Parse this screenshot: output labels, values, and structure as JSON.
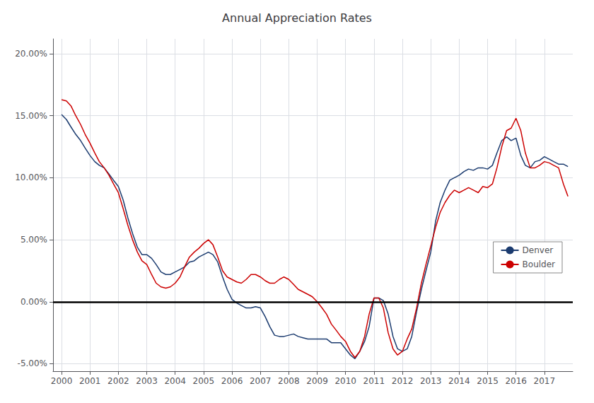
{
  "chart_data": {
    "type": "line",
    "title": "Annual Appreciation Rates",
    "x": [
      2000.0,
      2000.17,
      2000.33,
      2000.5,
      2000.67,
      2000.83,
      2001.0,
      2001.17,
      2001.33,
      2001.5,
      2001.67,
      2001.83,
      2002.0,
      2002.17,
      2002.33,
      2002.5,
      2002.67,
      2002.83,
      2003.0,
      2003.17,
      2003.33,
      2003.5,
      2003.67,
      2003.83,
      2004.0,
      2004.17,
      2004.33,
      2004.5,
      2004.67,
      2004.83,
      2005.0,
      2005.17,
      2005.33,
      2005.5,
      2005.67,
      2005.83,
      2006.0,
      2006.17,
      2006.33,
      2006.5,
      2006.67,
      2006.83,
      2007.0,
      2007.17,
      2007.33,
      2007.5,
      2007.67,
      2007.83,
      2008.0,
      2008.17,
      2008.33,
      2008.5,
      2008.67,
      2008.83,
      2009.0,
      2009.17,
      2009.33,
      2009.5,
      2009.67,
      2009.83,
      2010.0,
      2010.17,
      2010.33,
      2010.5,
      2010.67,
      2010.83,
      2011.0,
      2011.17,
      2011.33,
      2011.5,
      2011.67,
      2011.83,
      2012.0,
      2012.17,
      2012.33,
      2012.5,
      2012.67,
      2012.83,
      2013.0,
      2013.17,
      2013.33,
      2013.5,
      2013.67,
      2013.83,
      2014.0,
      2014.17,
      2014.33,
      2014.5,
      2014.67,
      2014.83,
      2015.0,
      2015.17,
      2015.33,
      2015.5,
      2015.67,
      2015.83,
      2016.0,
      2016.17,
      2016.33,
      2016.5,
      2016.67,
      2016.83,
      2017.0,
      2017.17,
      2017.33,
      2017.5,
      2017.67,
      2017.83
    ],
    "series": [
      {
        "name": "Denver",
        "color": "#1B3B6F",
        "values": [
          0.151,
          0.147,
          0.141,
          0.135,
          0.13,
          0.124,
          0.118,
          0.113,
          0.11,
          0.108,
          0.103,
          0.098,
          0.093,
          0.082,
          0.068,
          0.055,
          0.044,
          0.038,
          0.038,
          0.035,
          0.03,
          0.024,
          0.022,
          0.022,
          0.024,
          0.026,
          0.028,
          0.032,
          0.033,
          0.036,
          0.038,
          0.04,
          0.038,
          0.032,
          0.02,
          0.01,
          0.002,
          -0.001,
          -0.003,
          -0.005,
          -0.005,
          -0.004,
          -0.005,
          -0.012,
          -0.02,
          -0.027,
          -0.028,
          -0.028,
          -0.027,
          -0.026,
          -0.028,
          -0.029,
          -0.03,
          -0.03,
          -0.03,
          -0.03,
          -0.03,
          -0.033,
          -0.033,
          -0.033,
          -0.038,
          -0.043,
          -0.046,
          -0.04,
          -0.032,
          -0.02,
          0.003,
          0.003,
          0.001,
          -0.01,
          -0.028,
          -0.038,
          -0.04,
          -0.038,
          -0.028,
          -0.008,
          0.01,
          0.025,
          0.04,
          0.065,
          0.08,
          0.09,
          0.098,
          0.1,
          0.102,
          0.105,
          0.107,
          0.106,
          0.108,
          0.108,
          0.107,
          0.11,
          0.12,
          0.13,
          0.133,
          0.13,
          0.132,
          0.118,
          0.11,
          0.108,
          0.113,
          0.114,
          0.117,
          0.115,
          0.113,
          0.111,
          0.111,
          0.109
        ]
      },
      {
        "name": "Boulder",
        "color": "#CC0000",
        "values": [
          0.163,
          0.162,
          0.158,
          0.15,
          0.143,
          0.135,
          0.128,
          0.12,
          0.113,
          0.108,
          0.102,
          0.095,
          0.088,
          0.075,
          0.062,
          0.05,
          0.04,
          0.033,
          0.03,
          0.022,
          0.015,
          0.012,
          0.011,
          0.012,
          0.015,
          0.02,
          0.028,
          0.036,
          0.04,
          0.043,
          0.047,
          0.05,
          0.046,
          0.036,
          0.025,
          0.02,
          0.018,
          0.016,
          0.015,
          0.018,
          0.022,
          0.022,
          0.02,
          0.017,
          0.015,
          0.015,
          0.018,
          0.02,
          0.018,
          0.014,
          0.01,
          0.008,
          0.006,
          0.004,
          0.0,
          -0.005,
          -0.01,
          -0.018,
          -0.023,
          -0.028,
          -0.032,
          -0.04,
          -0.045,
          -0.04,
          -0.028,
          -0.01,
          0.003,
          0.003,
          -0.005,
          -0.025,
          -0.038,
          -0.043,
          -0.04,
          -0.03,
          -0.022,
          -0.005,
          0.015,
          0.03,
          0.045,
          0.06,
          0.072,
          0.08,
          0.086,
          0.09,
          0.088,
          0.09,
          0.092,
          0.09,
          0.088,
          0.093,
          0.092,
          0.095,
          0.108,
          0.125,
          0.138,
          0.14,
          0.148,
          0.138,
          0.12,
          0.108,
          0.108,
          0.11,
          0.113,
          0.112,
          0.11,
          0.108,
          0.095,
          0.085
        ]
      }
    ],
    "xlim": [
      1999.7,
      2018.0
    ],
    "xticks": [
      2000,
      2001,
      2002,
      2003,
      2004,
      2005,
      2006,
      2007,
      2008,
      2009,
      2010,
      2011,
      2012,
      2013,
      2014,
      2015,
      2016,
      2017
    ],
    "ylim": [
      -0.056,
      0.212
    ],
    "yticks": [
      {
        "value": -0.05,
        "label": "-5.00%"
      },
      {
        "value": 0.0,
        "label": "0.00%"
      },
      {
        "value": 0.05,
        "label": "5.00%"
      },
      {
        "value": 0.1,
        "label": "10.00%"
      },
      {
        "value": 0.15,
        "label": "15.00%"
      },
      {
        "value": 0.2,
        "label": "20.00%"
      }
    ],
    "grid": true,
    "legend": "right"
  }
}
